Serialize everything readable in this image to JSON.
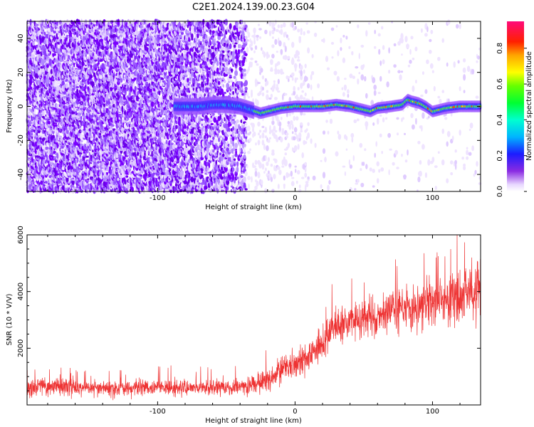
{
  "title": "C2E1.2024.139.00.23.G04",
  "chart_data": [
    {
      "type": "heatmap",
      "xlabel": "Height of straight line (km)",
      "ylabel": "Frequency (Hz)",
      "xlim": [
        -195,
        135
      ],
      "ylim": [
        -50,
        50
      ],
      "xticks": [
        -100,
        0,
        100
      ],
      "yticks": [
        -40,
        -20,
        0,
        20,
        40
      ],
      "colorbar": {
        "label": "Normalized spectral amplitude",
        "range": [
          0,
          0.95
        ],
        "ticks": [
          0.0,
          0.2,
          0.4,
          0.6,
          0.8
        ],
        "tick_labels": [
          "0.0",
          "0.2",
          "0.4",
          "0.6",
          "0.8"
        ],
        "colormap": "rainbow (white-violet-blue-cyan-green-yellow-orange-red-magenta)"
      },
      "noise_region_x": [
        -195,
        -30
      ],
      "signal_start_x": -88,
      "signal_track": {
        "x": [
          -88,
          -80,
          -70,
          -60,
          -50,
          -40,
          -32,
          -25,
          -20,
          -10,
          0,
          10,
          20,
          30,
          40,
          50,
          55,
          60,
          70,
          78,
          82,
          85,
          90,
          95,
          100,
          110,
          120,
          130,
          135
        ],
        "freq": [
          0,
          0,
          0,
          1,
          1,
          0,
          -2,
          -4,
          -3,
          -1,
          0,
          0,
          0,
          1,
          0,
          -2,
          -3,
          -1,
          0,
          1,
          4,
          3,
          2,
          0,
          -3,
          -1,
          0,
          0,
          0
        ]
      },
      "grid": false
    },
    {
      "type": "line",
      "xlabel": "Height of straight line (km)",
      "ylabel": "SNR (10 * V/V)",
      "xlim": [
        -195,
        135
      ],
      "ylim": [
        0,
        6000
      ],
      "xticks": [
        -100,
        0,
        100
      ],
      "yticks": [
        2000,
        4000,
        6000
      ],
      "series": [
        {
          "color": "#ee3333",
          "x": [
            -195,
            -175,
            -150,
            -125,
            -100,
            -75,
            -50,
            -35,
            -20,
            -10,
            0,
            10,
            20,
            30,
            40,
            50,
            60,
            70,
            80,
            90,
            100,
            110,
            120,
            135
          ],
          "mean": [
            600,
            650,
            600,
            580,
            620,
            600,
            620,
            650,
            900,
            1200,
            1500,
            1800,
            2200,
            2800,
            2900,
            3000,
            3200,
            3300,
            3400,
            3500,
            3600,
            3700,
            3800,
            4100
          ],
          "spread": [
            350,
            400,
            350,
            350,
            350,
            350,
            350,
            400,
            500,
            600,
            600,
            700,
            700,
            800,
            800,
            900,
            900,
            900,
            1000,
            1000,
            1100,
            1100,
            1200,
            1300
          ]
        }
      ],
      "grid": false
    }
  ]
}
